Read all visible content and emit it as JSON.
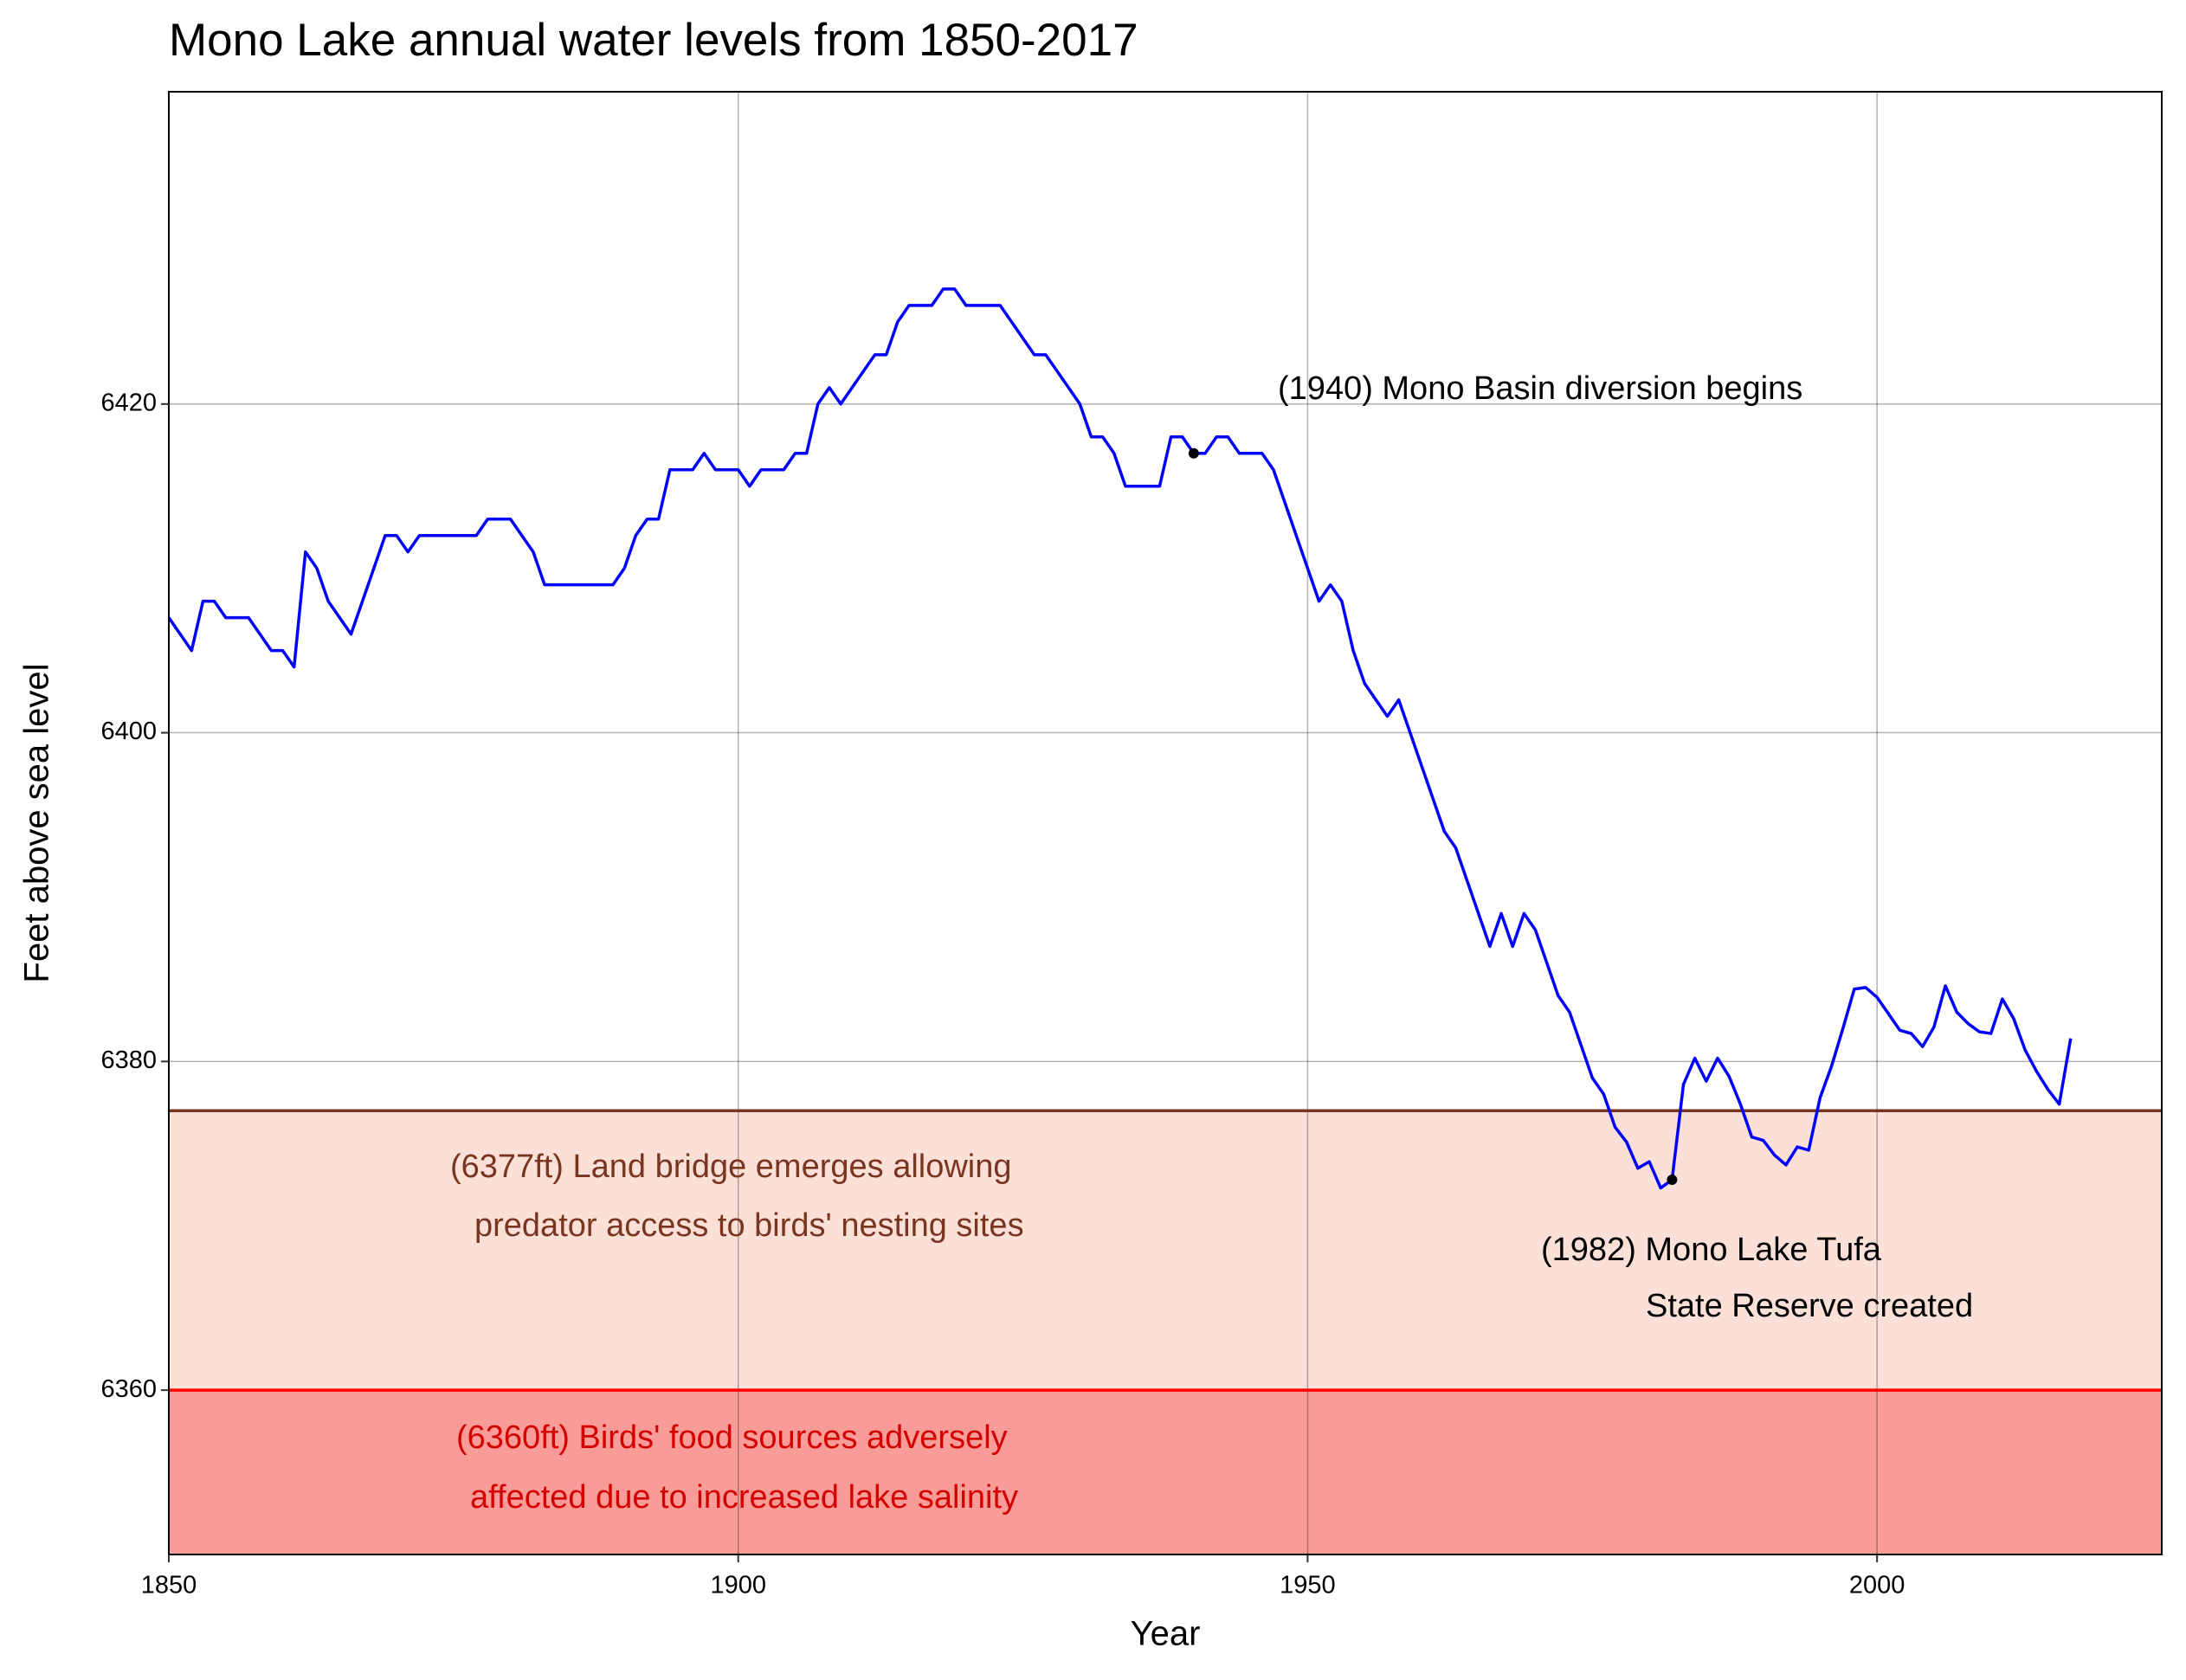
{
  "chart_data": {
    "type": "line",
    "title": "Mono Lake annual water levels from 1850-2017",
    "x_label": "Year",
    "y_label": "Feet above sea level",
    "xlim": [
      1850,
      2025
    ],
    "ylim": [
      6350,
      6439
    ],
    "xticks": [
      1850,
      1900,
      1950,
      2000
    ],
    "yticks": [
      6360,
      6380,
      6400,
      6420
    ],
    "grid": true,
    "color": "#0000ff",
    "x": [
      1850,
      1851,
      1852,
      1853,
      1854,
      1855,
      1856,
      1857,
      1858,
      1859,
      1860,
      1861,
      1862,
      1863,
      1864,
      1865,
      1866,
      1867,
      1868,
      1869,
      1870,
      1871,
      1872,
      1873,
      1874,
      1875,
      1876,
      1877,
      1878,
      1879,
      1880,
      1881,
      1882,
      1883,
      1884,
      1885,
      1886,
      1887,
      1888,
      1889,
      1890,
      1891,
      1892,
      1893,
      1894,
      1895,
      1896,
      1897,
      1898,
      1899,
      1900,
      1901,
      1902,
      1903,
      1904,
      1905,
      1906,
      1907,
      1908,
      1909,
      1910,
      1911,
      1912,
      1913,
      1914,
      1915,
      1916,
      1917,
      1918,
      1919,
      1920,
      1921,
      1922,
      1923,
      1924,
      1925,
      1926,
      1927,
      1928,
      1929,
      1930,
      1931,
      1932,
      1933,
      1934,
      1935,
      1936,
      1937,
      1938,
      1939,
      1940,
      1941,
      1942,
      1943,
      1944,
      1945,
      1946,
      1947,
      1948,
      1949,
      1950,
      1951,
      1952,
      1953,
      1954,
      1955,
      1956,
      1957,
      1958,
      1959,
      1960,
      1961,
      1962,
      1963,
      1964,
      1965,
      1966,
      1967,
      1968,
      1969,
      1970,
      1971,
      1972,
      1973,
      1974,
      1975,
      1976,
      1977,
      1978,
      1979,
      1980,
      1981,
      1982,
      1983,
      1984,
      1985,
      1986,
      1987,
      1988,
      1989,
      1990,
      1991,
      1992,
      1993,
      1994,
      1995,
      1996,
      1997,
      1998,
      1999,
      2000,
      2001,
      2002,
      2003,
      2004,
      2005,
      2006,
      2007,
      2008,
      2009,
      2010,
      2011,
      2012,
      2013,
      2014,
      2015,
      2016,
      2017
    ],
    "values": [
      6407,
      6406,
      6405,
      6408,
      6408,
      6407,
      6407,
      6407,
      6406,
      6405,
      6405,
      6404,
      6411,
      6410,
      6408,
      6407,
      6406,
      6408,
      6410,
      6412,
      6412,
      6411,
      6412,
      6412,
      6412,
      6412,
      6412,
      6412,
      6413,
      6413,
      6413,
      6412,
      6411,
      6409,
      6409,
      6409,
      6409,
      6409,
      6409,
      6409,
      6410,
      6412,
      6413,
      6413,
      6416,
      6416,
      6416,
      6417,
      6416,
      6416,
      6416,
      6415,
      6416,
      6416,
      6416,
      6417,
      6417,
      6420,
      6421,
      6420,
      6421,
      6422,
      6423,
      6423,
      6425,
      6426,
      6426,
      6426,
      6427,
      6427,
      6426,
      6426,
      6426,
      6426,
      6425,
      6424,
      6423,
      6423,
      6422,
      6421,
      6420,
      6418,
      6418,
      6417,
      6415,
      6415,
      6415,
      6415,
      6418,
      6418,
      6417,
      6417,
      6418,
      6418,
      6417,
      6417,
      6417,
      6416,
      6414,
      6412,
      6410,
      6408,
      6409,
      6408,
      6405,
      6403,
      6402,
      6401,
      6402,
      6400,
      6398,
      6396,
      6394,
      6393,
      6391,
      6389,
      6387,
      6389,
      6387,
      6389,
      6388,
      6386,
      6384,
      6383,
      6381,
      6379,
      6378,
      6376,
      6375.1,
      6373.5,
      6373.9,
      6372.3,
      6372.8,
      6378.6,
      6380.2,
      6378.8,
      6380.2,
      6379.1,
      6377.4,
      6375.4,
      6375.2,
      6374.3,
      6373.7,
      6374.8,
      6374.6,
      6377.8,
      6379.7,
      6382.0,
      6384.4,
      6384.5,
      6383.9,
      6382.9,
      6381.9,
      6381.7,
      6380.9,
      6382.1,
      6384.6,
      6383.0,
      6382.3,
      6381.8,
      6381.7,
      6383.8,
      6382.6,
      6380.7,
      6379.4,
      6378.3,
      6377.4,
      6381.4
    ],
    "thresholds": [
      {
        "value": 6377,
        "color": "#7a3520",
        "fill": "#fbe0d8",
        "text_color": "#7a3520",
        "lines": [
          "(6377ft) Land bridge emerges allowing",
          "predator access to birds' nesting sites"
        ]
      },
      {
        "value": 6360,
        "color": "#ff0000",
        "fill": "#f99c97",
        "text_color": "#d40000",
        "lines": [
          "(6360ft) Birds' food sources adversely",
          "affected due to increased lake salinity"
        ]
      }
    ],
    "events": [
      {
        "x": 1940,
        "y": 6417,
        "lines": [
          "(1940) Mono Basin diversion begins"
        ]
      },
      {
        "x": 1982,
        "y": 6372.8,
        "lines": [
          "(1982) Mono Lake Tufa",
          "State Reserve created"
        ]
      }
    ]
  }
}
